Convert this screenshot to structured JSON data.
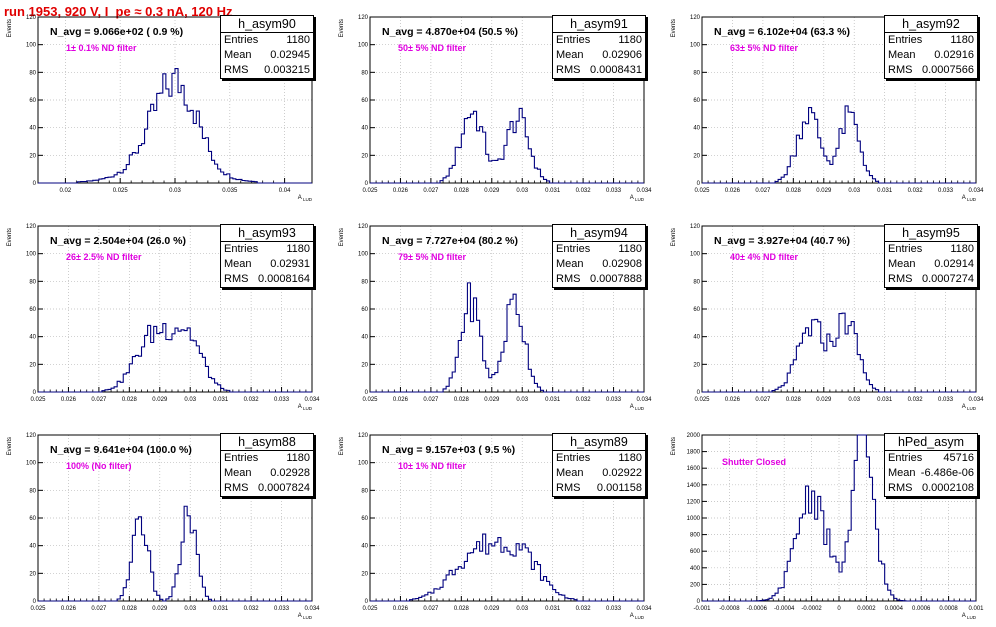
{
  "header": {
    "run_title": "run 1953,   920 V, I_pe ≈ 0.3 nA, 120 Hz"
  },
  "colors": {
    "line": "#00007f",
    "title": "#e00000",
    "annotation": "#e000e0",
    "grid": "#b8b8b8"
  },
  "labels": {
    "entries": "Entries",
    "mean": "Mean",
    "rms": "RMS",
    "ylabel": "Events",
    "xlabel": "A",
    "xlabel_sub": "LUD"
  },
  "chart_data": [
    {
      "type": "histogram",
      "name": "h_asym90",
      "navg": "N_avg = 9.066e+02 ( 0.9 %)",
      "annotation": "1± 0.1% ND filter",
      "entries": "1180",
      "mean": "0.02945",
      "rms": "0.003215",
      "xlim": [
        0.0175,
        0.0425
      ],
      "ylim": [
        0,
        120
      ],
      "yticks": [
        0,
        20,
        40,
        60,
        80,
        100,
        120
      ],
      "xticks": [
        0.02,
        0.025,
        0.03,
        0.035,
        0.04
      ],
      "xtick_labels": [
        "0.02",
        "0.025",
        "0.03",
        "0.035",
        "0.04"
      ],
      "peaks": [
        [
          0.029,
          0.0018,
          38
        ],
        [
          0.031,
          0.0016,
          35
        ],
        [
          0.0295,
          0.0035,
          12
        ]
      ]
    },
    {
      "type": "histogram",
      "name": "h_asym91",
      "navg": "N_avg = 4.870e+04 (50.5 %)",
      "annotation": "50± 5% ND filter",
      "entries": "1180",
      "mean": "0.02906",
      "rms": "0.0008431",
      "xlim": [
        0.025,
        0.034
      ],
      "ylim": [
        0,
        120
      ],
      "yticks": [
        0,
        20,
        40,
        60,
        80,
        100,
        120
      ],
      "xticks": [
        0.025,
        0.026,
        0.027,
        0.028,
        0.029,
        0.03,
        0.031,
        0.032,
        0.033,
        0.034
      ],
      "xtick_labels": [
        "0.025",
        "0.026",
        "0.027",
        "0.028",
        "0.029",
        "0.03",
        "0.031",
        "0.032",
        "0.033",
        "0.034"
      ],
      "peaks": [
        [
          0.02835,
          0.00038,
          52
        ],
        [
          0.02985,
          0.00038,
          46
        ]
      ]
    },
    {
      "type": "histogram",
      "name": "h_asym92",
      "navg": "N_avg = 6.102e+04 (63.3 %)",
      "annotation": "63± 5% ND filter",
      "entries": "1180",
      "mean": "0.02916",
      "rms": "0.0007566",
      "xlim": [
        0.025,
        0.034
      ],
      "ylim": [
        0,
        120
      ],
      "yticks": [
        0,
        20,
        40,
        60,
        80,
        100,
        120
      ],
      "xticks": [
        0.025,
        0.026,
        0.027,
        0.028,
        0.029,
        0.03,
        0.031,
        0.032,
        0.033,
        0.034
      ],
      "xtick_labels": [
        "0.025",
        "0.026",
        "0.027",
        "0.028",
        "0.029",
        "0.03",
        "0.031",
        "0.032",
        "0.033",
        "0.034"
      ],
      "peaks": [
        [
          0.0285,
          0.00038,
          50
        ],
        [
          0.02985,
          0.00033,
          48
        ]
      ]
    },
    {
      "type": "histogram",
      "name": "h_asym93",
      "navg": "N_avg = 2.504e+04 (26.0 %)",
      "annotation": "26± 2.5% ND filter",
      "entries": "1180",
      "mean": "0.02931",
      "rms": "0.0008164",
      "xlim": [
        0.025,
        0.034
      ],
      "ylim": [
        0,
        120
      ],
      "yticks": [
        0,
        20,
        40,
        60,
        80,
        100,
        120
      ],
      "xticks": [
        0.025,
        0.026,
        0.027,
        0.028,
        0.029,
        0.03,
        0.031,
        0.032,
        0.033,
        0.034
      ],
      "xtick_labels": [
        "0.025",
        "0.026",
        "0.027",
        "0.028",
        "0.029",
        "0.03",
        "0.031",
        "0.032",
        "0.033",
        "0.034"
      ],
      "peaks": [
        [
          0.0288,
          0.0006,
          40
        ],
        [
          0.0299,
          0.0005,
          38
        ]
      ]
    },
    {
      "type": "histogram",
      "name": "h_asym94",
      "navg": "N_avg = 7.727e+04 (80.2 %)",
      "annotation": "79± 5% ND filter",
      "entries": "1180",
      "mean": "0.02908",
      "rms": "0.0007888",
      "xlim": [
        0.025,
        0.034
      ],
      "ylim": [
        0,
        120
      ],
      "yticks": [
        0,
        20,
        40,
        60,
        80,
        100,
        120
      ],
      "xticks": [
        0.025,
        0.026,
        0.027,
        0.028,
        0.029,
        0.03,
        0.031,
        0.032,
        0.033,
        0.034
      ],
      "xtick_labels": [
        "0.025",
        "0.026",
        "0.027",
        "0.028",
        "0.029",
        "0.03",
        "0.031",
        "0.032",
        "0.033",
        "0.034"
      ],
      "peaks": [
        [
          0.0283,
          0.00032,
          66
        ],
        [
          0.02975,
          0.00033,
          65
        ]
      ]
    },
    {
      "type": "histogram",
      "name": "h_asym95",
      "navg": "N_avg = 3.927e+04 (40.7 %)",
      "annotation": "40± 4% ND filter",
      "entries": "1180",
      "mean": "0.02914",
      "rms": "0.0007274",
      "xlim": [
        0.025,
        0.034
      ],
      "ylim": [
        0,
        120
      ],
      "yticks": [
        0,
        20,
        40,
        60,
        80,
        100,
        120
      ],
      "xticks": [
        0.025,
        0.026,
        0.027,
        0.028,
        0.029,
        0.03,
        0.031,
        0.032,
        0.033,
        0.034
      ],
      "xtick_labels": [
        "0.025",
        "0.026",
        "0.027",
        "0.028",
        "0.029",
        "0.03",
        "0.031",
        "0.032",
        "0.033",
        "0.034"
      ],
      "peaks": [
        [
          0.0286,
          0.00045,
          46
        ],
        [
          0.02975,
          0.00038,
          50
        ]
      ]
    },
    {
      "type": "histogram",
      "name": "h_asym88",
      "navg": "N_avg = 9.641e+04 (100.0 %)",
      "annotation": "100% (No filter)",
      "entries": "1180",
      "mean": "0.02928",
      "rms": "0.0007824",
      "xlim": [
        0.025,
        0.034
      ],
      "ylim": [
        0,
        120
      ],
      "yticks": [
        0,
        20,
        40,
        60,
        80,
        100,
        120
      ],
      "xticks": [
        0.025,
        0.026,
        0.027,
        0.028,
        0.029,
        0.03,
        0.031,
        0.032,
        0.033,
        0.034
      ],
      "xtick_labels": [
        "0.025",
        "0.026",
        "0.027",
        "0.028",
        "0.029",
        "0.03",
        "0.031",
        "0.032",
        "0.033",
        "0.034"
      ],
      "peaks": [
        [
          0.02835,
          0.00025,
          62
        ],
        [
          0.02995,
          0.00025,
          62
        ]
      ]
    },
    {
      "type": "histogram",
      "name": "h_asym89",
      "navg": "N_avg = 9.157e+03 ( 9.5 %)",
      "annotation": "10± 1% ND filter",
      "entries": "1180",
      "mean": "0.02922",
      "rms": "0.001158",
      "xlim": [
        0.025,
        0.034
      ],
      "ylim": [
        0,
        120
      ],
      "yticks": [
        0,
        20,
        40,
        60,
        80,
        100,
        120
      ],
      "xticks": [
        0.025,
        0.026,
        0.027,
        0.028,
        0.029,
        0.03,
        0.031,
        0.032,
        0.033,
        0.034
      ],
      "xtick_labels": [
        "0.025",
        "0.026",
        "0.027",
        "0.028",
        "0.029",
        "0.03",
        "0.031",
        "0.032",
        "0.033",
        "0.034"
      ],
      "peaks": [
        [
          0.0285,
          0.0008,
          34
        ],
        [
          0.0299,
          0.0007,
          32
        ]
      ]
    },
    {
      "type": "histogram",
      "name": "hPed_asym",
      "navg": "",
      "annotation": "Shutter Closed",
      "entries": "45716",
      "mean": "-6.486e-06",
      "rms": "0.0002108",
      "xlim": [
        -0.001,
        0.001
      ],
      "ylim": [
        0,
        2000
      ],
      "yticks": [
        0,
        200,
        400,
        600,
        800,
        1000,
        1200,
        1400,
        1600,
        1800,
        2000
      ],
      "xticks": [
        -0.001,
        -0.0008,
        -0.0006,
        -0.0004,
        -0.0002,
        0,
        0.0002,
        0.0004,
        0.0006,
        0.0008,
        0.001
      ],
      "xtick_labels": [
        "-0.001",
        "-0.0008",
        "-0.0006",
        "-0.0004",
        "-0.0002",
        "0",
        "0.0002",
        "0.0004",
        "0.0006",
        "0.0008",
        "0.001"
      ],
      "peaks": [
        [
          -0.0002,
          0.00011,
          1300
        ],
        [
          0.00018,
          8e-05,
          1880
        ]
      ]
    }
  ]
}
